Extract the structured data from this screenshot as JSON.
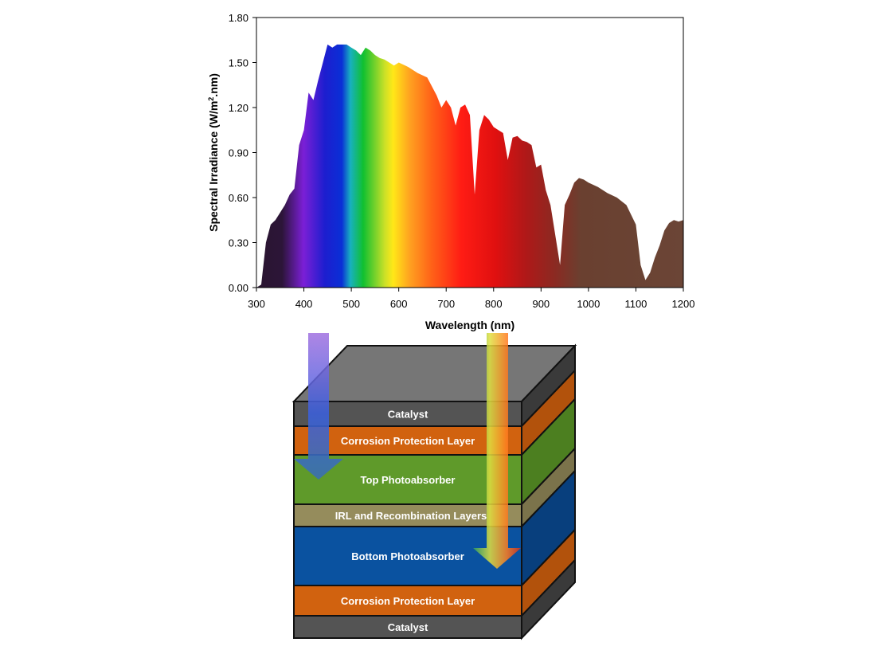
{
  "chart_data": {
    "type": "area",
    "xlabel": "Wavelength (nm)",
    "ylabel_main": "Spectral Irradiance (W/m",
    "ylabel_sup": "2",
    "ylabel_tail": ".nm)",
    "xlim": [
      300,
      1200
    ],
    "ylim": [
      0,
      1.8
    ],
    "x_ticks": [
      "300",
      "400",
      "500",
      "600",
      "700",
      "800",
      "900",
      "1000",
      "1100",
      "1200"
    ],
    "y_ticks": [
      "0.00",
      "0.30",
      "0.60",
      "0.90",
      "1.20",
      "1.50",
      "1.80"
    ],
    "x": [
      300,
      310,
      320,
      330,
      340,
      350,
      360,
      370,
      380,
      390,
      400,
      410,
      420,
      430,
      440,
      450,
      460,
      470,
      480,
      490,
      500,
      510,
      520,
      530,
      540,
      550,
      560,
      570,
      580,
      590,
      600,
      620,
      640,
      660,
      680,
      690,
      700,
      710,
      720,
      730,
      740,
      750,
      760,
      770,
      780,
      790,
      800,
      810,
      820,
      830,
      840,
      850,
      860,
      870,
      880,
      890,
      900,
      910,
      920,
      930,
      940,
      950,
      960,
      970,
      980,
      990,
      1000,
      1020,
      1040,
      1060,
      1080,
      1100,
      1110,
      1120,
      1130,
      1140,
      1150,
      1160,
      1170,
      1180,
      1190,
      1200
    ],
    "y": [
      0.0,
      0.02,
      0.3,
      0.42,
      0.45,
      0.5,
      0.55,
      0.62,
      0.66,
      0.95,
      1.05,
      1.3,
      1.25,
      1.38,
      1.5,
      1.62,
      1.6,
      1.62,
      1.62,
      1.62,
      1.6,
      1.58,
      1.55,
      1.6,
      1.58,
      1.55,
      1.53,
      1.52,
      1.5,
      1.48,
      1.5,
      1.47,
      1.43,
      1.4,
      1.28,
      1.2,
      1.25,
      1.2,
      1.08,
      1.2,
      1.22,
      1.15,
      0.62,
      1.05,
      1.15,
      1.12,
      1.07,
      1.05,
      1.03,
      0.85,
      1.0,
      1.01,
      0.98,
      0.97,
      0.95,
      0.8,
      0.82,
      0.65,
      0.55,
      0.35,
      0.15,
      0.55,
      0.62,
      0.7,
      0.73,
      0.72,
      0.7,
      0.67,
      0.63,
      0.6,
      0.55,
      0.42,
      0.15,
      0.05,
      0.1,
      0.2,
      0.28,
      0.38,
      0.43,
      0.45,
      0.44,
      0.45
    ],
    "colors": [
      "#2a1530",
      "#7b1fd6",
      "#1d1ecf",
      "#0a2fd6",
      "#18b0c0",
      "#10c030",
      "#c8e028",
      "#ffe818",
      "#ffa020",
      "#ff6218",
      "#ff1c14",
      "#e01010",
      "#b01818",
      "#8a2a22",
      "#6a4030",
      "#6b4536"
    ],
    "grid": false,
    "legend": "none"
  },
  "stack": {
    "layers": [
      {
        "label": "Catalyst",
        "color": "#545454",
        "side": "#3a3a3a"
      },
      {
        "label": "Corrosion Protection Layer",
        "color": "#d1620f",
        "side": "#b2520c"
      },
      {
        "label": "Top Photoabsorber",
        "color": "#5f9a2a",
        "side": "#4c7f20"
      },
      {
        "label": "IRL and Recombination Layers",
        "color": "#958c5c",
        "side": "#7b734b"
      },
      {
        "label": "Bottom Photoabsorber",
        "color": "#0a52a0",
        "side": "#083f7d"
      },
      {
        "label": "Corrosion Protection Layer",
        "color": "#d1620f",
        "side": "#b2520c"
      },
      {
        "label": "Catalyst",
        "color": "#545454",
        "side": "#3a3a3a"
      }
    ],
    "top_face_color": "#767676",
    "arrow_short_colors": [
      "#a070e0",
      "#3a60e0",
      "#3a70b0"
    ],
    "arrow_long_colors": [
      "#30a060",
      "#e0e040",
      "#ff8020",
      "#d03020"
    ]
  }
}
